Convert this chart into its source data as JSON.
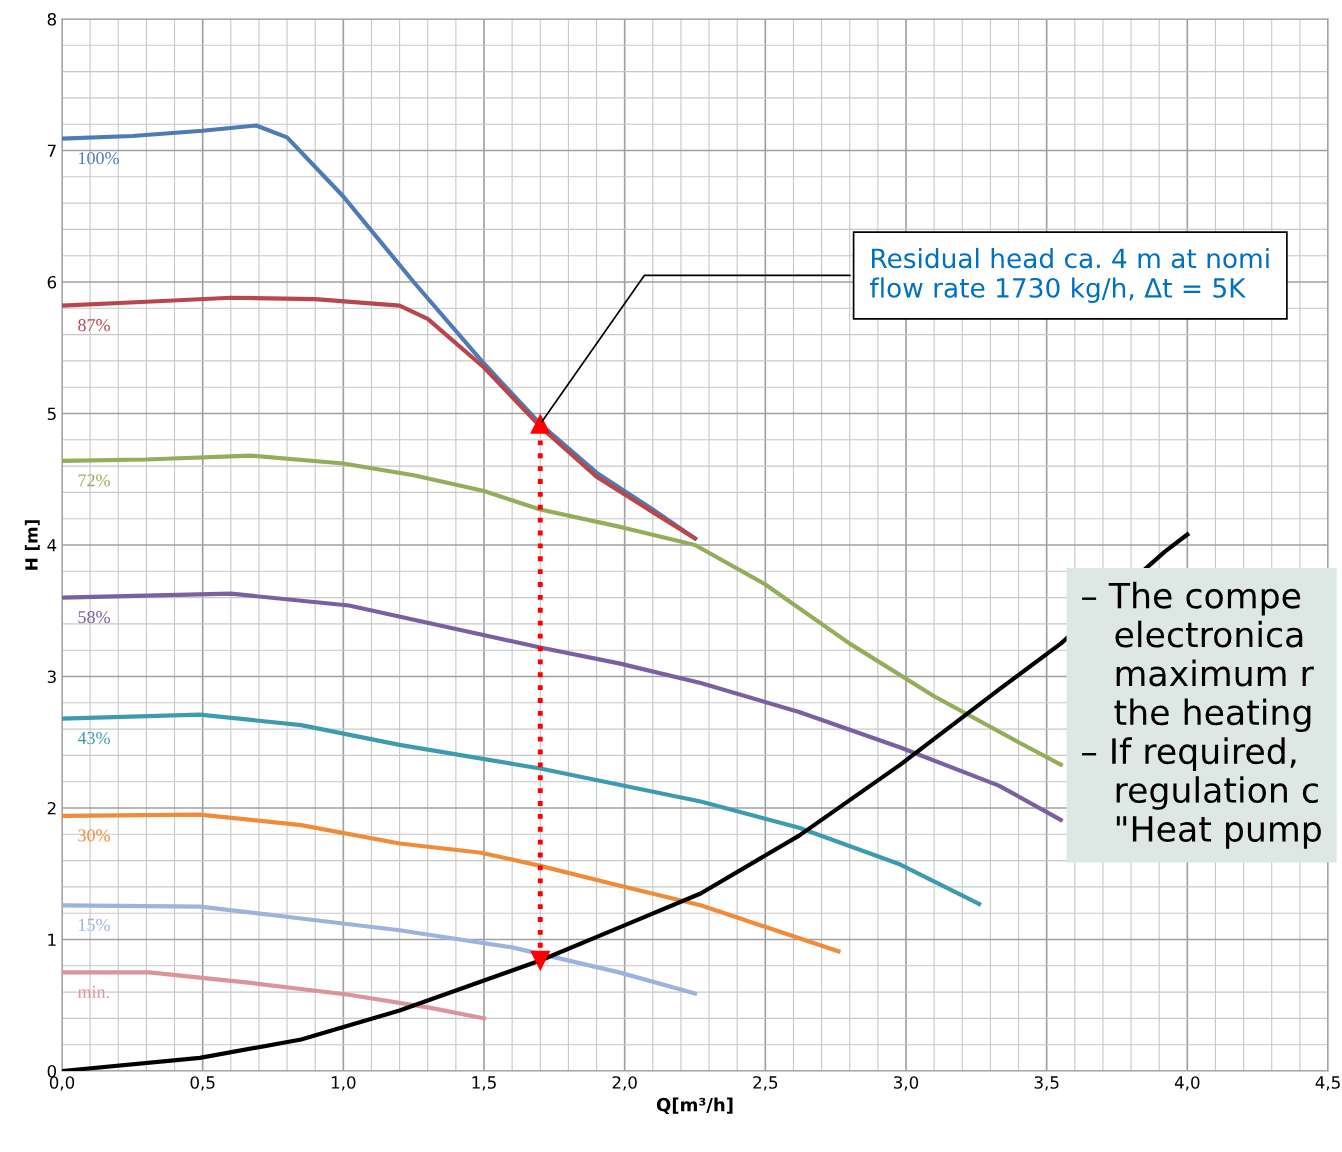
{
  "chart_data": {
    "type": "line",
    "xlabel": "Q[m³/h]",
    "ylabel": "H [m]",
    "xlim": [
      0,
      4.5
    ],
    "ylim": [
      0,
      8
    ],
    "xticks": [
      {
        "value": 0,
        "label": "0,0"
      },
      {
        "value": 0.5,
        "label": "0,5"
      },
      {
        "value": 1,
        "label": "1,0"
      },
      {
        "value": 1.5,
        "label": "1,5"
      },
      {
        "value": 2,
        "label": "2,0"
      },
      {
        "value": 2.5,
        "label": "2,5"
      },
      {
        "value": 3,
        "label": "3,0"
      },
      {
        "value": 3.5,
        "label": "3,5"
      },
      {
        "value": 4,
        "label": "4,0"
      },
      {
        "value": 4.5,
        "label": "4,5"
      }
    ],
    "yticks": [
      0,
      1,
      2,
      3,
      4,
      5,
      6,
      7,
      8
    ],
    "grid": true,
    "marker": "none",
    "line_style": "solid",
    "series": [
      {
        "name": "100%",
        "color": "#4f7bb5",
        "x": [
          0,
          0.25,
          0.5,
          0.69,
          0.8,
          1.0,
          1.25,
          1.5,
          1.7,
          1.9,
          2.1,
          2.25
        ],
        "values": [
          7.09,
          7.11,
          7.15,
          7.19,
          7.1,
          6.65,
          6.0,
          5.38,
          4.92,
          4.55,
          4.27,
          4.05
        ]
      },
      {
        "name": "87%",
        "color": "#b8474d",
        "x": [
          0,
          0.3,
          0.6,
          0.9,
          1.2,
          1.3,
          1.5,
          1.7,
          1.9,
          2.1,
          2.25
        ],
        "values": [
          5.82,
          5.85,
          5.88,
          5.87,
          5.82,
          5.72,
          5.35,
          4.9,
          4.52,
          4.25,
          4.05
        ]
      },
      {
        "name": "72%",
        "color": "#93ad5a",
        "x": [
          0,
          0.3,
          0.67,
          1.0,
          1.25,
          1.5,
          1.7,
          2.0,
          2.25,
          2.5,
          2.8,
          3.1,
          3.4,
          3.55
        ],
        "values": [
          4.64,
          4.65,
          4.68,
          4.62,
          4.53,
          4.41,
          4.27,
          4.13,
          4.0,
          3.7,
          3.25,
          2.85,
          2.5,
          2.33
        ]
      },
      {
        "name": "58%",
        "color": "#7b5fa3",
        "x": [
          0,
          0.6,
          1.02,
          1.7,
          1.98,
          2.27,
          2.62,
          2.98,
          3.33,
          3.55
        ],
        "values": [
          3.6,
          3.63,
          3.54,
          3.22,
          3.1,
          2.95,
          2.73,
          2.46,
          2.17,
          1.91
        ]
      },
      {
        "name": "43%",
        "color": "#3d9bb0",
        "x": [
          0,
          0.49,
          0.85,
          1.2,
          1.7,
          2.27,
          2.62,
          2.98,
          3.26
        ],
        "values": [
          2.68,
          2.71,
          2.63,
          2.48,
          2.3,
          2.05,
          1.85,
          1.57,
          1.27
        ]
      },
      {
        "name": "30%",
        "color": "#ee8c3c",
        "x": [
          0,
          0.49,
          0.85,
          1.2,
          1.49,
          1.7,
          1.98,
          2.27,
          2.76
        ],
        "values": [
          1.94,
          1.95,
          1.87,
          1.73,
          1.66,
          1.56,
          1.41,
          1.26,
          0.91
        ]
      },
      {
        "name": "15%",
        "color": "#9cb3db",
        "x": [
          0,
          0.49,
          0.85,
          1.2,
          1.6,
          1.98,
          2.25
        ],
        "values": [
          1.26,
          1.25,
          1.16,
          1.07,
          0.94,
          0.75,
          0.59
        ]
      },
      {
        "name": "min.",
        "color": "#d9959a",
        "x": [
          0,
          0.31,
          0.67,
          1.02,
          1.31,
          1.5
        ],
        "values": [
          0.75,
          0.75,
          0.67,
          0.58,
          0.48,
          0.4
        ]
      },
      {
        "color": "#000000",
        "x": [
          0,
          0.49,
          0.85,
          1.2,
          1.7,
          1.98,
          2.27,
          2.62,
          2.98,
          3.33,
          3.55,
          3.92,
          4.0
        ],
        "values": [
          0,
          0.1,
          0.24,
          0.46,
          0.84,
          1.09,
          1.35,
          1.79,
          2.33,
          2.9,
          3.25,
          3.95,
          4.08
        ]
      },
      {
        "color": "#ff0000",
        "line_style": "dotted",
        "marker": "triangle",
        "x": [
          1.7,
          1.7
        ],
        "values": [
          0.84,
          4.92
        ]
      }
    ],
    "annotations": [
      {
        "text": "Residual head ca. 4 m at nomi\nflow rate 1730 kg/h, Δt = 5K",
        "x": 1.7,
        "y": 4.92
      },
      "– The compe\n   electronica\n   maximum r\n   the heating\n– If required,\n   regulation c\n   \"Heat pump"
    ]
  }
}
